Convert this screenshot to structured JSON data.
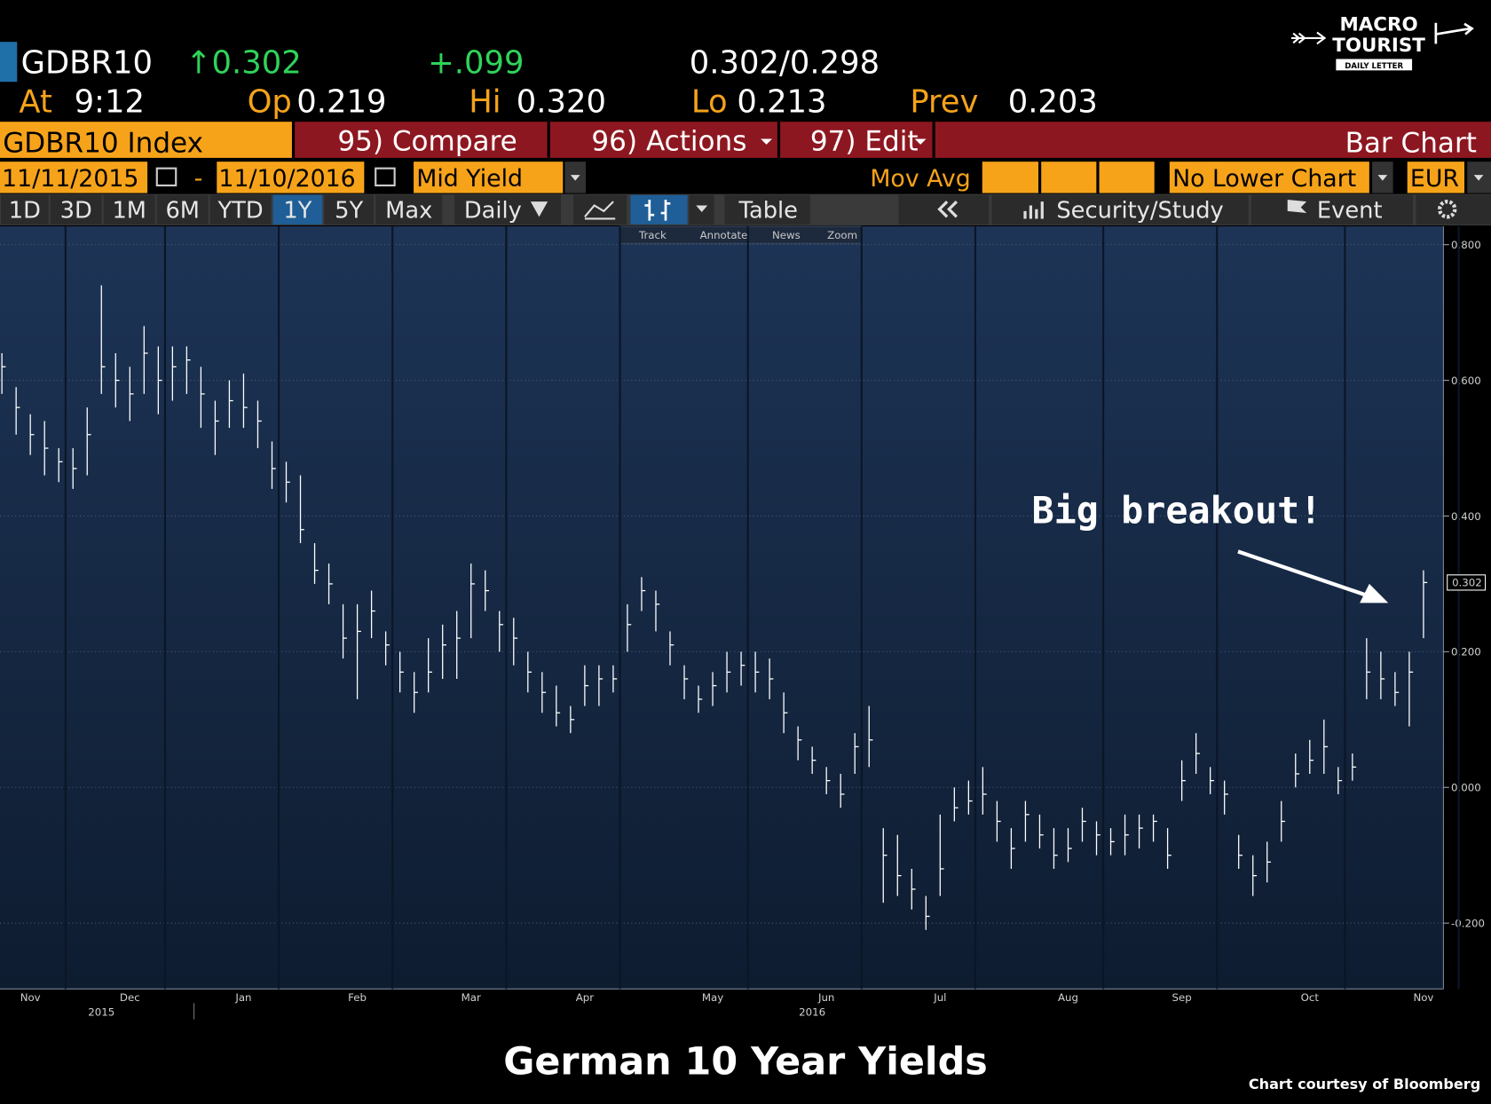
{
  "header": {
    "ticker": "GDBR10",
    "last": "↑0.302",
    "change": "+.099",
    "bid_ask": "0.302/0.298",
    "at_label": "At",
    "time": "9:12",
    "open_label": "Op",
    "open": "0.219",
    "high_label": "Hi",
    "high": "0.320",
    "low_label": "Lo",
    "low": "0.213",
    "prev_label": "Prev",
    "prev": "0.203"
  },
  "logo": {
    "line1": "MACRO",
    "line2": "TOURIST",
    "line3": "DAILY LETTER"
  },
  "toolbar": {
    "security": "GDBR10 Index",
    "compare": "95) Compare",
    "actions": "96) Actions",
    "edit": "97) Edit",
    "chart_type": "Bar Chart"
  },
  "controls": {
    "start_date": "11/11/2015",
    "dash": "-",
    "end_date": "11/10/2016",
    "field": "Mid Yield",
    "mov_avg": "Mov Avg",
    "lower_chart": "No Lower Chart",
    "currency": "EUR"
  },
  "periods": [
    "1D",
    "3D",
    "1M",
    "6M",
    "YTD",
    "1Y",
    "5Y",
    "Max"
  ],
  "frequency": "Daily",
  "table": "Table",
  "study": "Security/Study",
  "event": "Event",
  "tools": [
    "Track",
    "Annotate",
    "News",
    "Zoom"
  ],
  "chart_data": {
    "type": "ohlc",
    "title": "German 10 Year Yields",
    "source": "Chart courtesy of Bloomberg",
    "annotation": "Big breakout!",
    "color": "#ffffff",
    "categories": [
      null,
      null,
      "Nov",
      null,
      null,
      null,
      null,
      null,
      null,
      "Dec",
      null,
      null,
      null,
      null,
      null,
      null,
      null,
      "Jan",
      null,
      null,
      null,
      null,
      null,
      null,
      null,
      "Feb",
      null,
      null,
      null,
      null,
      null,
      null,
      null,
      "Mar",
      null,
      null,
      null,
      null,
      null,
      null,
      null,
      "Apr",
      null,
      null,
      null,
      null,
      null,
      null,
      null,
      null,
      "May",
      null,
      null,
      null,
      null,
      null,
      null,
      null,
      "Jun",
      null,
      null,
      null,
      null,
      null,
      null,
      null,
      "Jul",
      null,
      null,
      null,
      null,
      null,
      null,
      null,
      null,
      "Aug",
      null,
      null,
      null,
      null,
      null,
      null,
      null,
      "Sep",
      null,
      null,
      null,
      null,
      null,
      null,
      null,
      null,
      "Oct",
      null,
      null,
      null,
      null,
      null,
      null,
      null,
      "Nov"
    ],
    "years": [
      null,
      null,
      null,
      null,
      null,
      null,
      null,
      "2015",
      null,
      null,
      null,
      null,
      null,
      null,
      null,
      null,
      null,
      null,
      null,
      null,
      null,
      null,
      null,
      null,
      null,
      null,
      null,
      null,
      null,
      null,
      null,
      null,
      null,
      null,
      null,
      null,
      null,
      null,
      null,
      null,
      null,
      null,
      null,
      null,
      null,
      null,
      null,
      null,
      null,
      null,
      null,
      null,
      null,
      null,
      null,
      null,
      null,
      "2016",
      null,
      null,
      null,
      null,
      null,
      null,
      null,
      null,
      null,
      null,
      null,
      null,
      null,
      null,
      null,
      null,
      null,
      null,
      null,
      null,
      null,
      null,
      null,
      null,
      null,
      null,
      null,
      null,
      null,
      null,
      null,
      null,
      null,
      null,
      null,
      null,
      null,
      null,
      null,
      null,
      null,
      null,
      null,
      null,
      null
    ],
    "values": [
      0.62,
      0.56,
      0.52,
      0.5,
      0.48,
      0.47,
      0.52,
      0.62,
      0.6,
      0.58,
      0.64,
      0.6,
      0.62,
      0.63,
      0.58,
      0.54,
      0.57,
      0.56,
      0.54,
      0.47,
      0.45,
      0.38,
      0.32,
      0.3,
      0.22,
      0.23,
      0.26,
      0.21,
      0.17,
      0.14,
      0.17,
      0.21,
      0.22,
      0.3,
      0.29,
      0.24,
      0.22,
      0.17,
      0.14,
      0.11,
      0.1,
      0.15,
      0.16,
      0.16,
      0.24,
      0.29,
      0.27,
      0.21,
      0.16,
      0.13,
      0.15,
      0.17,
      0.18,
      0.17,
      0.16,
      0.11,
      0.07,
      0.04,
      0.01,
      -0.01,
      0.06,
      0.07,
      -0.1,
      -0.13,
      -0.15,
      -0.19,
      -0.12,
      -0.03,
      -0.02,
      -0.01,
      -0.05,
      -0.09,
      -0.04,
      -0.07,
      -0.1,
      -0.09,
      -0.05,
      -0.07,
      -0.08,
      -0.07,
      -0.06,
      -0.05,
      -0.1,
      0.01,
      0.05,
      0.01,
      -0.01,
      -0.1,
      -0.13,
      -0.11,
      -0.05,
      0.02,
      0.04,
      0.06,
      0.01,
      0.03,
      0.17,
      0.16,
      0.14,
      0.17,
      0.302
    ],
    "high": [
      0.64,
      0.59,
      0.55,
      0.54,
      0.5,
      0.5,
      0.56,
      0.74,
      0.64,
      0.62,
      0.68,
      0.65,
      0.65,
      0.65,
      0.62,
      0.57,
      0.6,
      0.61,
      0.57,
      0.51,
      0.48,
      0.46,
      0.36,
      0.33,
      0.27,
      0.27,
      0.29,
      0.23,
      0.2,
      0.17,
      0.22,
      0.24,
      0.26,
      0.33,
      0.32,
      0.26,
      0.25,
      0.2,
      0.17,
      0.15,
      0.12,
      0.18,
      0.18,
      0.18,
      0.27,
      0.31,
      0.29,
      0.23,
      0.18,
      0.15,
      0.17,
      0.2,
      0.2,
      0.2,
      0.19,
      0.14,
      0.09,
      0.06,
      0.03,
      0.02,
      0.08,
      0.12,
      -0.06,
      -0.07,
      -0.12,
      -0.16,
      -0.04,
      0.0,
      0.01,
      0.03,
      -0.02,
      -0.06,
      -0.02,
      -0.04,
      -0.06,
      -0.06,
      -0.03,
      -0.05,
      -0.06,
      -0.04,
      -0.04,
      -0.04,
      -0.06,
      0.04,
      0.08,
      0.03,
      0.01,
      -0.07,
      -0.1,
      -0.08,
      -0.02,
      0.05,
      0.07,
      0.1,
      0.03,
      0.05,
      0.22,
      0.2,
      0.17,
      0.2,
      0.32
    ],
    "low": [
      0.58,
      0.52,
      0.49,
      0.46,
      0.45,
      0.44,
      0.46,
      0.58,
      0.56,
      0.54,
      0.58,
      0.55,
      0.57,
      0.58,
      0.53,
      0.49,
      0.53,
      0.53,
      0.5,
      0.44,
      0.42,
      0.36,
      0.3,
      0.27,
      0.19,
      0.13,
      0.22,
      0.18,
      0.14,
      0.11,
      0.14,
      0.16,
      0.16,
      0.22,
      0.26,
      0.2,
      0.18,
      0.14,
      0.11,
      0.09,
      0.08,
      0.12,
      0.12,
      0.14,
      0.2,
      0.26,
      0.23,
      0.18,
      0.13,
      0.11,
      0.12,
      0.14,
      0.15,
      0.14,
      0.13,
      0.08,
      0.04,
      0.02,
      -0.01,
      -0.03,
      0.02,
      0.03,
      -0.17,
      -0.16,
      -0.18,
      -0.21,
      -0.16,
      -0.05,
      -0.04,
      -0.04,
      -0.08,
      -0.12,
      -0.08,
      -0.09,
      -0.12,
      -0.11,
      -0.08,
      -0.1,
      -0.1,
      -0.1,
      -0.09,
      -0.08,
      -0.12,
      -0.02,
      0.02,
      -0.01,
      -0.04,
      -0.12,
      -0.16,
      -0.14,
      -0.08,
      0.0,
      0.02,
      0.02,
      -0.01,
      0.01,
      0.13,
      0.13,
      0.12,
      0.09,
      0.22
    ],
    "ylim": [
      -0.297,
      0.827
    ],
    "yticks": [
      {
        "value": 0.8,
        "label": "0.800"
      },
      {
        "value": 0.6,
        "label": "0.600"
      },
      {
        "value": 0.4,
        "label": "0.400"
      },
      {
        "value": 0.2,
        "label": "0.200"
      },
      {
        "value": 0,
        "label": "0.000"
      },
      {
        "value": -0.2,
        "label": "-0.200"
      }
    ],
    "grid": true
  }
}
